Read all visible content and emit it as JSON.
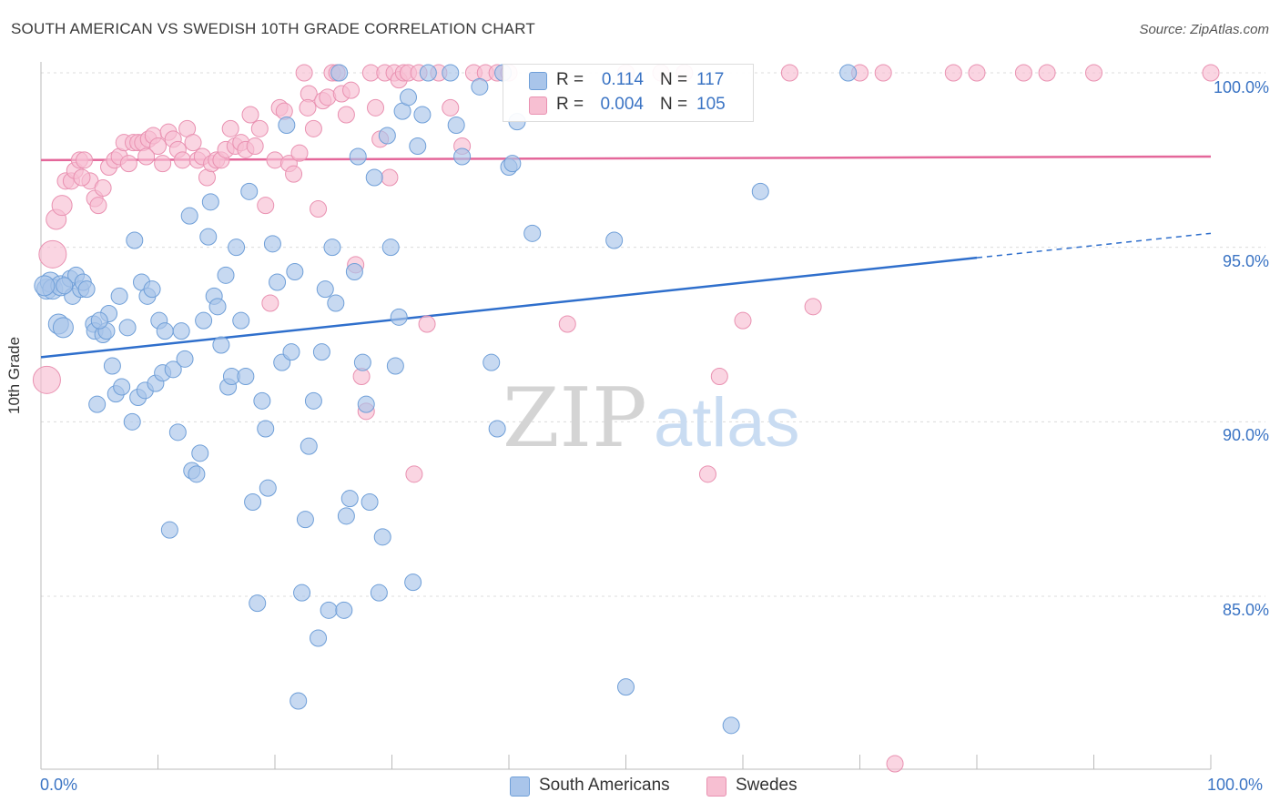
{
  "header": {
    "title": "SOUTH AMERICAN VS SWEDISH 10TH GRADE CORRELATION CHART",
    "source": "Source: ZipAtlas.com"
  },
  "legend": {
    "rows": [
      {
        "r_label": "R =",
        "r_value": "0.114",
        "n_label": "N =",
        "n_value": "117"
      },
      {
        "r_label": "R =",
        "r_value": "0.004",
        "n_label": "N =",
        "n_value": "105"
      }
    ]
  },
  "bottom_legend": [
    "South Americans",
    "Swedes"
  ],
  "watermark": {
    "zip": "ZIP",
    "atlas": "atlas"
  },
  "colors": {
    "blue_fill": "#a9c5ea",
    "blue_stroke": "#6f9fd8",
    "blue_line": "#2f6fcc",
    "pink_fill": "#f7bfd2",
    "pink_stroke": "#e991b1",
    "pink_line": "#e4679a",
    "tick_text": "#3b74c4",
    "grid": "#dcdcdc"
  },
  "chart_data": {
    "type": "scatter",
    "title": "SOUTH AMERICAN VS SWEDISH 10TH GRADE CORRELATION CHART",
    "xlabel": "",
    "ylabel": "10th Grade",
    "x_tick_labels": [
      "0.0%",
      "100.0%"
    ],
    "y_tick_labels": [
      "100.0%",
      "95.0%",
      "90.0%",
      "85.0%"
    ],
    "xlim": [
      0,
      100
    ],
    "ylim": [
      80,
      100.7
    ],
    "grid": true,
    "legend_position": "top-center",
    "series": [
      {
        "name": "South Americans",
        "r": 0.114,
        "n": 117,
        "trend": {
          "x0": 0,
          "y0": 91.85,
          "x1": 80,
          "y1": 94.7,
          "dashed_to": {
            "x": 100,
            "y": 95.4
          }
        },
        "points": [
          [
            0.5,
            93.8
          ],
          [
            0.8,
            94.0
          ],
          [
            1.0,
            93.8
          ],
          [
            1.5,
            92.8
          ],
          [
            1.7,
            93.9
          ],
          [
            1.9,
            92.7
          ],
          [
            2.5,
            94.1
          ],
          [
            2.7,
            93.6
          ],
          [
            3.0,
            94.2
          ],
          [
            3.4,
            93.8
          ],
          [
            3.6,
            94.0
          ],
          [
            3.9,
            93.8
          ],
          [
            4.5,
            92.8
          ],
          [
            4.6,
            92.6
          ],
          [
            4.8,
            90.5
          ],
          [
            5.3,
            92.5
          ],
          [
            5.6,
            92.6
          ],
          [
            5.8,
            93.1
          ],
          [
            6.1,
            91.6
          ],
          [
            6.4,
            90.8
          ],
          [
            6.7,
            93.6
          ],
          [
            6.9,
            91.0
          ],
          [
            7.4,
            92.7
          ],
          [
            7.8,
            90.0
          ],
          [
            8.0,
            95.2
          ],
          [
            8.3,
            90.7
          ],
          [
            8.6,
            94.0
          ],
          [
            8.9,
            90.9
          ],
          [
            9.1,
            93.6
          ],
          [
            9.5,
            93.8
          ],
          [
            9.8,
            91.1
          ],
          [
            10.1,
            92.9
          ],
          [
            10.4,
            91.4
          ],
          [
            10.6,
            92.6
          ],
          [
            11.0,
            86.9
          ],
          [
            11.3,
            91.5
          ],
          [
            11.7,
            89.7
          ],
          [
            12.0,
            92.6
          ],
          [
            12.3,
            91.8
          ],
          [
            12.7,
            95.9
          ],
          [
            12.9,
            88.6
          ],
          [
            13.3,
            88.5
          ],
          [
            13.6,
            89.1
          ],
          [
            13.9,
            92.9
          ],
          [
            14.3,
            95.3
          ],
          [
            14.5,
            96.3
          ],
          [
            14.8,
            93.6
          ],
          [
            15.1,
            93.3
          ],
          [
            15.4,
            92.2
          ],
          [
            15.8,
            94.2
          ],
          [
            16.0,
            91.0
          ],
          [
            16.3,
            91.3
          ],
          [
            16.7,
            95.0
          ],
          [
            17.1,
            92.9
          ],
          [
            17.5,
            91.3
          ],
          [
            17.8,
            96.6
          ],
          [
            18.1,
            87.7
          ],
          [
            18.5,
            84.8
          ],
          [
            18.9,
            90.6
          ],
          [
            19.2,
            89.8
          ],
          [
            19.4,
            88.1
          ],
          [
            19.8,
            95.1
          ],
          [
            20.2,
            94.0
          ],
          [
            20.6,
            91.7
          ],
          [
            21.0,
            98.5
          ],
          [
            21.4,
            92.0
          ],
          [
            21.7,
            94.3
          ],
          [
            22.0,
            82.0
          ],
          [
            22.3,
            85.1
          ],
          [
            22.6,
            87.2
          ],
          [
            22.9,
            89.3
          ],
          [
            23.3,
            90.6
          ],
          [
            23.7,
            83.8
          ],
          [
            24.0,
            92.0
          ],
          [
            24.3,
            93.8
          ],
          [
            24.6,
            84.6
          ],
          [
            24.9,
            95.0
          ],
          [
            25.2,
            93.4
          ],
          [
            25.5,
            100.0
          ],
          [
            25.9,
            84.6
          ],
          [
            26.1,
            87.3
          ],
          [
            26.4,
            87.8
          ],
          [
            26.8,
            94.3
          ],
          [
            27.1,
            97.6
          ],
          [
            27.5,
            91.7
          ],
          [
            27.8,
            90.5
          ],
          [
            28.1,
            87.7
          ],
          [
            28.5,
            97.0
          ],
          [
            28.9,
            85.1
          ],
          [
            29.2,
            86.7
          ],
          [
            29.6,
            98.2
          ],
          [
            29.9,
            95.0
          ],
          [
            30.3,
            91.6
          ],
          [
            30.6,
            93.0
          ],
          [
            30.9,
            98.9
          ],
          [
            31.4,
            99.3
          ],
          [
            31.8,
            85.4
          ],
          [
            32.2,
            97.9
          ],
          [
            32.6,
            98.8
          ],
          [
            33.1,
            100.0
          ],
          [
            35.0,
            100.0
          ],
          [
            35.5,
            98.5
          ],
          [
            36.0,
            97.6
          ],
          [
            37.5,
            99.6
          ],
          [
            38.5,
            91.7
          ],
          [
            39.0,
            89.8
          ],
          [
            39.5,
            100.0
          ],
          [
            40.0,
            97.3
          ],
          [
            40.3,
            97.4
          ],
          [
            40.7,
            98.6
          ],
          [
            42.0,
            95.4
          ],
          [
            49.0,
            95.2
          ],
          [
            50.0,
            82.4
          ],
          [
            59.0,
            81.3
          ],
          [
            61.5,
            96.6
          ],
          [
            69.0,
            100.0
          ],
          [
            0.3,
            93.9
          ],
          [
            2.0,
            93.9
          ],
          [
            5.0,
            92.9
          ]
        ]
      },
      {
        "name": "Swedes",
        "r": 0.004,
        "n": 105,
        "trend": {
          "x0": 0,
          "y0": 97.5,
          "x1": 100,
          "y1": 97.6
        },
        "points": [
          [
            0.5,
            91.2
          ],
          [
            1.0,
            94.8
          ],
          [
            1.3,
            95.8
          ],
          [
            1.8,
            96.2
          ],
          [
            2.1,
            96.9
          ],
          [
            2.6,
            96.9
          ],
          [
            2.9,
            97.2
          ],
          [
            3.3,
            97.5
          ],
          [
            3.7,
            97.5
          ],
          [
            4.2,
            96.9
          ],
          [
            4.6,
            96.4
          ],
          [
            4.9,
            96.2
          ],
          [
            5.3,
            96.7
          ],
          [
            5.8,
            97.3
          ],
          [
            6.3,
            97.5
          ],
          [
            6.7,
            97.6
          ],
          [
            7.1,
            98.0
          ],
          [
            7.5,
            97.4
          ],
          [
            7.9,
            98.0
          ],
          [
            8.3,
            98.0
          ],
          [
            8.7,
            98.0
          ],
          [
            9.2,
            98.1
          ],
          [
            9.6,
            98.2
          ],
          [
            10.0,
            97.9
          ],
          [
            10.4,
            97.4
          ],
          [
            10.9,
            98.3
          ],
          [
            11.3,
            98.1
          ],
          [
            11.7,
            97.8
          ],
          [
            12.1,
            97.5
          ],
          [
            12.5,
            98.4
          ],
          [
            13.0,
            98.0
          ],
          [
            13.4,
            97.5
          ],
          [
            13.8,
            97.6
          ],
          [
            14.2,
            97.0
          ],
          [
            14.6,
            97.4
          ],
          [
            15.0,
            97.5
          ],
          [
            15.4,
            97.5
          ],
          [
            15.8,
            97.8
          ],
          [
            16.2,
            98.4
          ],
          [
            16.6,
            97.9
          ],
          [
            17.1,
            98.0
          ],
          [
            17.5,
            97.8
          ],
          [
            17.9,
            98.8
          ],
          [
            18.3,
            97.9
          ],
          [
            18.7,
            98.4
          ],
          [
            19.2,
            96.2
          ],
          [
            19.6,
            93.4
          ],
          [
            20.0,
            97.5
          ],
          [
            20.4,
            99.0
          ],
          [
            20.8,
            98.9
          ],
          [
            21.2,
            97.4
          ],
          [
            21.6,
            97.1
          ],
          [
            22.1,
            97.7
          ],
          [
            22.5,
            100.0
          ],
          [
            22.9,
            99.4
          ],
          [
            23.3,
            98.4
          ],
          [
            23.7,
            96.1
          ],
          [
            24.1,
            99.2
          ],
          [
            24.5,
            99.3
          ],
          [
            24.9,
            100.0
          ],
          [
            25.3,
            100.0
          ],
          [
            25.7,
            99.4
          ],
          [
            26.1,
            98.8
          ],
          [
            26.5,
            99.5
          ],
          [
            26.9,
            94.5
          ],
          [
            27.4,
            91.3
          ],
          [
            27.8,
            90.3
          ],
          [
            28.2,
            100.0
          ],
          [
            28.6,
            99.0
          ],
          [
            29.0,
            98.1
          ],
          [
            29.4,
            100.0
          ],
          [
            29.8,
            97.0
          ],
          [
            30.2,
            100.0
          ],
          [
            30.6,
            99.8
          ],
          [
            31.0,
            100.0
          ],
          [
            31.4,
            100.0
          ],
          [
            31.9,
            88.5
          ],
          [
            32.3,
            100.0
          ],
          [
            33.0,
            92.8
          ],
          [
            34.0,
            100.0
          ],
          [
            35.0,
            99.0
          ],
          [
            36.0,
            97.9
          ],
          [
            37.0,
            100.0
          ],
          [
            38.0,
            100.0
          ],
          [
            39.0,
            100.0
          ],
          [
            40.0,
            100.0
          ],
          [
            45.0,
            92.8
          ],
          [
            50.0,
            100.0
          ],
          [
            53.0,
            100.0
          ],
          [
            55.0,
            100.0
          ],
          [
            57.0,
            88.5
          ],
          [
            58.0,
            91.3
          ],
          [
            60.0,
            92.9
          ],
          [
            64.0,
            100.0
          ],
          [
            66.0,
            93.3
          ],
          [
            70.0,
            100.0
          ],
          [
            72.0,
            100.0
          ],
          [
            78.0,
            100.0
          ],
          [
            80.0,
            100.0
          ],
          [
            84.0,
            100.0
          ],
          [
            86.0,
            100.0
          ],
          [
            90.0,
            100.0
          ],
          [
            100.0,
            100.0
          ],
          [
            73.0,
            80.2
          ],
          [
            3.5,
            97.0
          ],
          [
            9.0,
            97.6
          ],
          [
            22.8,
            99.0
          ]
        ]
      }
    ]
  }
}
